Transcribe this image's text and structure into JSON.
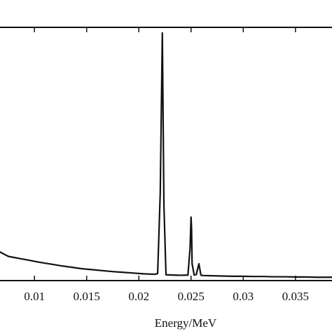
{
  "chart_data": {
    "type": "line",
    "title": "",
    "xlabel": "Energy/MeV",
    "ylabel": "",
    "xlim": [
      0.0067,
      0.0385
    ],
    "ylim": [
      0,
      1
    ],
    "x_ticks": [
      0.01,
      0.015,
      0.02,
      0.025,
      0.03,
      0.035
    ],
    "x_tick_labels": [
      "0.01",
      "0.015",
      "0.02",
      "0.025",
      "0.03",
      "0.035"
    ],
    "grid": false,
    "legend": "none",
    "series": [
      {
        "color": "#111111",
        "x": [
          0.0067,
          0.0075,
          0.0085,
          0.0095,
          0.0105,
          0.0115,
          0.0125,
          0.0135,
          0.0145,
          0.0155,
          0.0165,
          0.0175,
          0.0185,
          0.0195,
          0.0205,
          0.0215,
          0.0218,
          0.02205,
          0.02225,
          0.0224,
          0.0226,
          0.0233,
          0.024,
          0.0247,
          0.0249,
          0.025,
          0.02505,
          0.0251,
          0.0253,
          0.0255,
          0.02575,
          0.02595,
          0.0262,
          0.027,
          0.028,
          0.029,
          0.03,
          0.031,
          0.032,
          0.033,
          0.034,
          0.035,
          0.036,
          0.037,
          0.0385
        ],
        "values": [
          0.108,
          0.09,
          0.082,
          0.074,
          0.066,
          0.059,
          0.052,
          0.046,
          0.04,
          0.036,
          0.032,
          0.028,
          0.025,
          0.022,
          0.019,
          0.017,
          0.02,
          0.35,
          1.0,
          0.3,
          0.015,
          0.014,
          0.013,
          0.014,
          0.12,
          0.25,
          0.2,
          0.06,
          0.014,
          0.016,
          0.06,
          0.013,
          0.012,
          0.011,
          0.01,
          0.009,
          0.009,
          0.008,
          0.008,
          0.007,
          0.007,
          0.006,
          0.006,
          0.005,
          0.005
        ]
      }
    ]
  }
}
